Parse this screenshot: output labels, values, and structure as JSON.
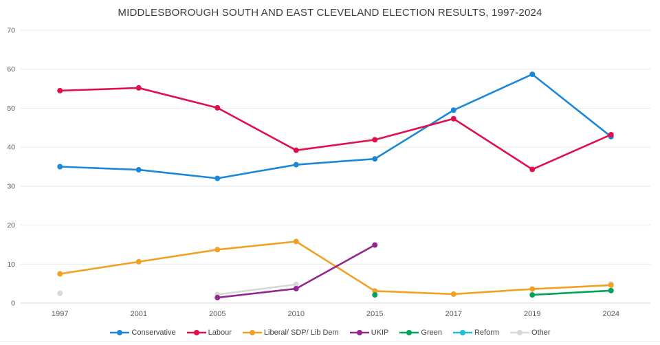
{
  "chart": {
    "title": "MIDDLESBOROUGH SOUTH AND EAST CLEVELAND ELECTION RESULTS, 1997-2024"
  },
  "chart_data": {
    "type": "line",
    "title": "MIDDLESBOROUGH SOUTH AND EAST CLEVELAND ELECTION RESULTS, 1997-2024",
    "xlabel": "",
    "ylabel": "",
    "categories": [
      "1997",
      "2001",
      "2005",
      "2010",
      "2015",
      "2017",
      "2019",
      "2024"
    ],
    "series": [
      {
        "name": "Conservative",
        "color": "#1b87d8",
        "values": [
          35.0,
          34.2,
          32.0,
          35.5,
          37.0,
          49.5,
          58.7,
          42.7
        ]
      },
      {
        "name": "Labour",
        "color": "#e0104c",
        "values": [
          54.5,
          55.2,
          50.1,
          39.2,
          41.9,
          47.3,
          34.3,
          43.2
        ]
      },
      {
        "name": "Liberal/ SDP/ Lib Dem",
        "color": "#f2a024",
        "values": [
          7.5,
          10.6,
          13.7,
          15.8,
          3.1,
          2.3,
          3.6,
          4.6
        ]
      },
      {
        "name": "UKIP",
        "color": "#93278f",
        "values": [
          null,
          null,
          1.4,
          3.7,
          14.9,
          null,
          null,
          null
        ]
      },
      {
        "name": "Green",
        "color": "#00a357",
        "values": [
          null,
          null,
          null,
          null,
          2.1,
          null,
          2.1,
          3.2
        ]
      },
      {
        "name": "Reform",
        "color": "#20bcd9",
        "values": [
          null,
          null,
          null,
          null,
          null,
          null,
          null,
          null
        ]
      },
      {
        "name": "Other",
        "color": "#d8d8d8",
        "values": [
          2.5,
          null,
          2.2,
          4.8,
          null,
          null,
          null,
          4.9
        ]
      }
    ],
    "draw_order": [
      6,
      0,
      1,
      2,
      3,
      4,
      5
    ],
    "ylim": [
      0,
      70
    ],
    "ytick_step": 10,
    "yticks": [
      0,
      10,
      20,
      30,
      40,
      50,
      60,
      70
    ],
    "grid": true,
    "legend_position": "bottom",
    "style": {
      "grid_color": "#e9e9e9",
      "axis_line_color": "#d6d6d6",
      "tick_label_color": "#595959",
      "title_color": "#3c3c3c",
      "background": "#ffffff"
    }
  }
}
